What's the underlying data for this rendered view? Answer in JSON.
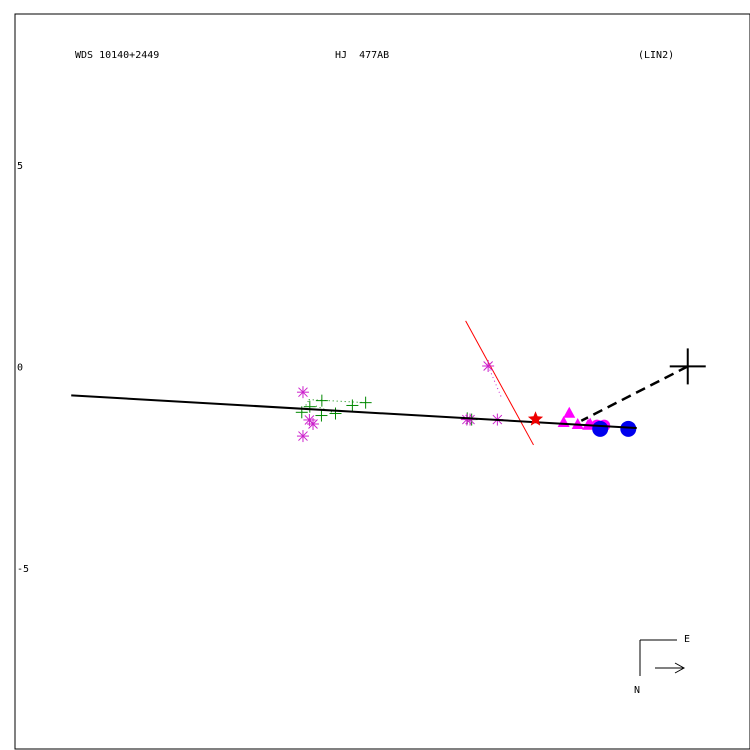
{
  "header": {
    "wds_id": "WDS 10140+2449",
    "discoverer": "HJ  477AB",
    "fit_code": "(LIN2)"
  },
  "compass": {
    "east_label": "E",
    "north_label": "N"
  },
  "colors": {
    "frame": "#000000",
    "fit_line": "#000000",
    "primary_vector": "#000000",
    "green_series": "#008800",
    "magenta_series": "#cc22cc",
    "triangle_series": "#ff00ff",
    "blue_series": "#0000ee",
    "red_line": "#ff0000",
    "red_star": "#ee0000"
  },
  "chart_data": {
    "type": "scatter",
    "ylim": [
      -9.5,
      8.75
    ],
    "xlim": [
      16.75,
      -1.55
    ],
    "yticks": [
      {
        "value": 5,
        "label": "5"
      },
      {
        "value": 0,
        "label": "0"
      },
      {
        "value": -5,
        "label": "-5"
      }
    ],
    "primary": {
      "x": 0,
      "y": 0
    },
    "fit_line": {
      "from": [
        15.35,
        -0.72
      ],
      "to": [
        1.27,
        -1.53
      ]
    },
    "primary_link": [
      [
        0,
        0
      ],
      [
        2.65,
        -1.35
      ]
    ],
    "perpendicular_line": {
      "from": [
        5.53,
        1.13
      ],
      "to": [
        3.84,
        -1.95
      ]
    },
    "reference_point": {
      "x": 3.79,
      "y": -1.31
    },
    "series": [
      {
        "marker": "plus",
        "color": "green",
        "points": [
          {
            "x": 9.11,
            "y": -0.85
          },
          {
            "x": 8.02,
            "y": -0.9
          },
          {
            "x": 8.35,
            "y": -0.97
          },
          {
            "x": 9.41,
            "y": -1.0
          },
          {
            "x": 8.77,
            "y": -1.17
          },
          {
            "x": 9.12,
            "y": -1.22
          },
          {
            "x": 9.61,
            "y": -1.14
          },
          {
            "x": 5.49,
            "y": -1.29
          },
          {
            "x": 5.38,
            "y": -1.32
          }
        ],
        "dotted_links": [
          [
            [
              8.77,
              -1.17
            ],
            [
              9.27,
              -0.98
            ]
          ],
          [
            [
              9.61,
              -1.14
            ],
            [
              9.41,
              -0.8
            ]
          ],
          [
            [
              8.02,
              -0.9
            ],
            [
              9.51,
              -0.82
            ]
          ]
        ]
      },
      {
        "marker": "asterisk",
        "color": "magenta",
        "points": [
          {
            "x": 9.58,
            "y": -0.64
          },
          {
            "x": 9.42,
            "y": -1.33
          },
          {
            "x": 9.33,
            "y": -1.43
          },
          {
            "x": 9.58,
            "y": -1.73
          },
          {
            "x": 5.5,
            "y": -1.32
          },
          {
            "x": 5.42,
            "y": -1.32
          },
          {
            "x": 4.74,
            "y": -1.32
          },
          {
            "x": 4.97,
            "y": 0.01
          }
        ],
        "dotted_links": [
          [
            [
              4.97,
              0.01
            ],
            [
              4.64,
              -0.77
            ]
          ]
        ]
      },
      {
        "marker": "triangle",
        "color": "magenta",
        "points": [
          {
            "x": 2.95,
            "y": -1.15
          },
          {
            "x": 3.09,
            "y": -1.38
          },
          {
            "x": 2.74,
            "y": -1.43
          },
          {
            "x": 2.48,
            "y": -1.45
          },
          {
            "x": 2.43,
            "y": -1.42
          }
        ]
      },
      {
        "marker": "circle",
        "color": "magenta",
        "points": [
          {
            "x": 2.26,
            "y": -1.47
          },
          {
            "x": 2.16,
            "y": -1.5
          },
          {
            "x": 2.08,
            "y": -1.47
          },
          {
            "x": 2.21,
            "y": -1.57
          },
          {
            "x": 2.13,
            "y": -1.52
          }
        ]
      },
      {
        "marker": "circle",
        "color": "blue",
        "points": [
          {
            "x": 2.18,
            "y": -1.55
          },
          {
            "x": 1.48,
            "y": -1.55
          }
        ]
      }
    ]
  }
}
